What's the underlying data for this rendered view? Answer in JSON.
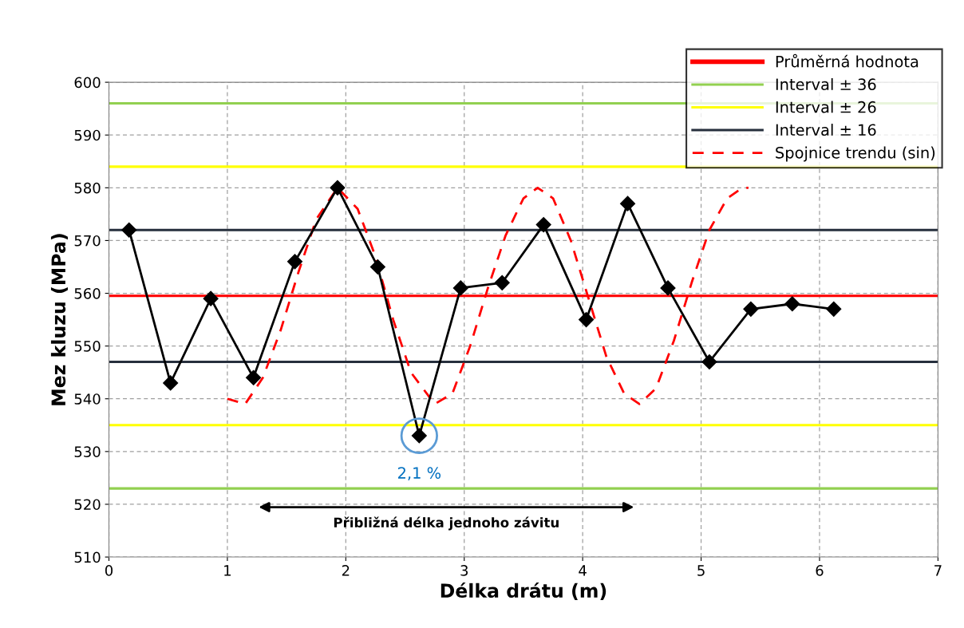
{
  "chart_data": {
    "type": "line",
    "xlabel": "Délka drátu (m)",
    "ylabel": "Mez kluzu (MPa)",
    "xlim": [
      0,
      7
    ],
    "xticks": [
      0,
      1,
      2,
      3,
      4,
      5,
      6,
      7
    ],
    "ylim": [
      510,
      600
    ],
    "yticks": [
      510,
      520,
      530,
      540,
      550,
      560,
      570,
      580,
      590,
      600
    ],
    "grid": true,
    "legend": "top right",
    "series": [
      {
        "color": "#000000",
        "marker": "diamond",
        "line_style": "solid",
        "x": [
          0.17,
          0.52,
          0.86,
          1.22,
          1.57,
          1.93,
          2.27,
          2.62,
          2.97,
          3.32,
          3.67,
          4.03,
          4.38,
          4.72,
          5.07,
          5.42,
          5.77,
          6.12
        ],
        "values": [
          572,
          543,
          559,
          544,
          566,
          580,
          565,
          533,
          561,
          562,
          573,
          555,
          577,
          561,
          547,
          557,
          558,
          557
        ]
      },
      {
        "name": "Spojnice trendu (sin)",
        "color": "#ff0000",
        "marker": "none",
        "line_style": "dashed",
        "x": [
          1.0,
          1.15,
          1.3,
          1.45,
          1.6,
          1.75,
          1.93,
          2.1,
          2.25,
          2.4,
          2.55,
          2.75,
          2.9,
          3.05,
          3.2,
          3.35,
          3.5,
          3.62,
          3.75,
          3.9,
          4.05,
          4.2,
          4.35,
          4.48,
          4.62,
          4.77,
          4.92,
          5.07,
          5.22,
          5.35,
          5.4
        ],
        "values": [
          540,
          539,
          544,
          553,
          564,
          574,
          580,
          576,
          567,
          555,
          545,
          539,
          541,
          550,
          561,
          571,
          578,
          580,
          578,
          570,
          559,
          548,
          541,
          539,
          542,
          551,
          562,
          572,
          578,
          580,
          580
        ]
      }
    ],
    "ref_lines": [
      {
        "axis": "y",
        "value": 559.5,
        "label": "Průměrná hodnota",
        "color": "#ff0000"
      },
      {
        "axis": "y",
        "value": 596,
        "label": "Interval ± 36",
        "color": "#92d050"
      },
      {
        "axis": "y",
        "value": 523,
        "label": null,
        "color": "#92d050"
      },
      {
        "axis": "y",
        "value": 584,
        "label": "Interval ± 26",
        "color": "#ffff00"
      },
      {
        "axis": "y",
        "value": 535,
        "label": null,
        "color": "#ffff00"
      },
      {
        "axis": "y",
        "value": 572,
        "label": "Interval ± 16",
        "color": "#262f3d"
      },
      {
        "axis": "y",
        "value": 547,
        "label": null,
        "color": "#262f3d"
      }
    ],
    "annotations": [
      {
        "text": "2,1 %",
        "x": 2.62,
        "y": 533
      },
      "Přibližná délka jednoho závitu"
    ]
  }
}
